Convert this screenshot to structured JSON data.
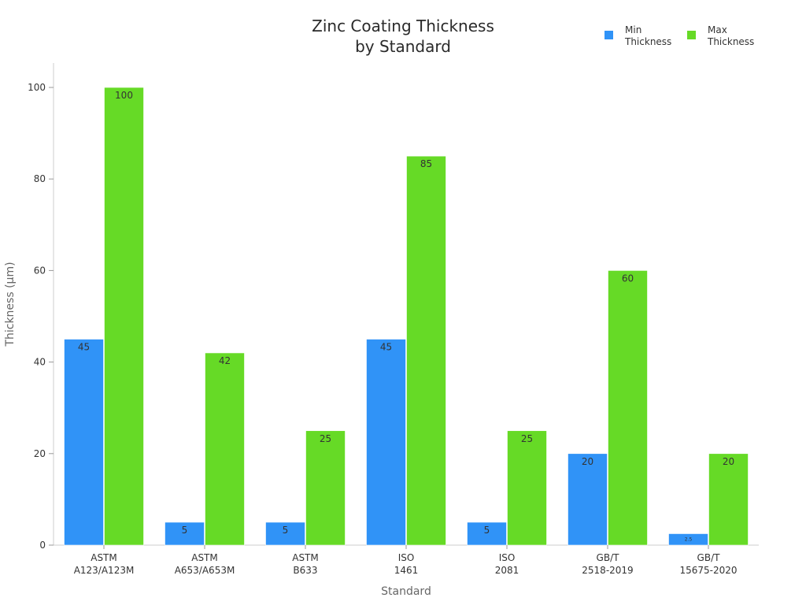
{
  "chart_data": {
    "type": "bar",
    "title_lines": [
      "Zinc Coating Thickness",
      "by Standard"
    ],
    "xlabel": "Standard",
    "ylabel": "Thickness (μm)",
    "categories": [
      [
        "ASTM",
        "A123/A123M"
      ],
      [
        "ASTM",
        "A653/A653M"
      ],
      [
        "ASTM",
        "B633"
      ],
      [
        "ISO",
        "1461"
      ],
      [
        "ISO",
        "2081"
      ],
      [
        "GB/T",
        "2518-2019"
      ],
      [
        "GB/T",
        "15675-2020"
      ]
    ],
    "series": [
      {
        "name_lines": [
          "Min",
          "Thickness"
        ],
        "color": "#3093f7",
        "values": [
          45,
          5,
          5,
          45,
          5,
          20,
          2.5
        ],
        "labels": [
          "45",
          "5",
          "5",
          "45",
          "5",
          "20",
          "2.5"
        ]
      },
      {
        "name_lines": [
          "Max",
          "Thickness"
        ],
        "color": "#66da26",
        "values": [
          100,
          42,
          25,
          85,
          25,
          60,
          20
        ],
        "labels": [
          "100",
          "42",
          "25",
          "85",
          "25",
          "60",
          "20"
        ]
      }
    ],
    "ylim": [
      0,
      105
    ],
    "yticks": [
      0,
      20,
      40,
      60,
      80,
      100
    ],
    "grid": false,
    "legend_position": "top-right"
  }
}
